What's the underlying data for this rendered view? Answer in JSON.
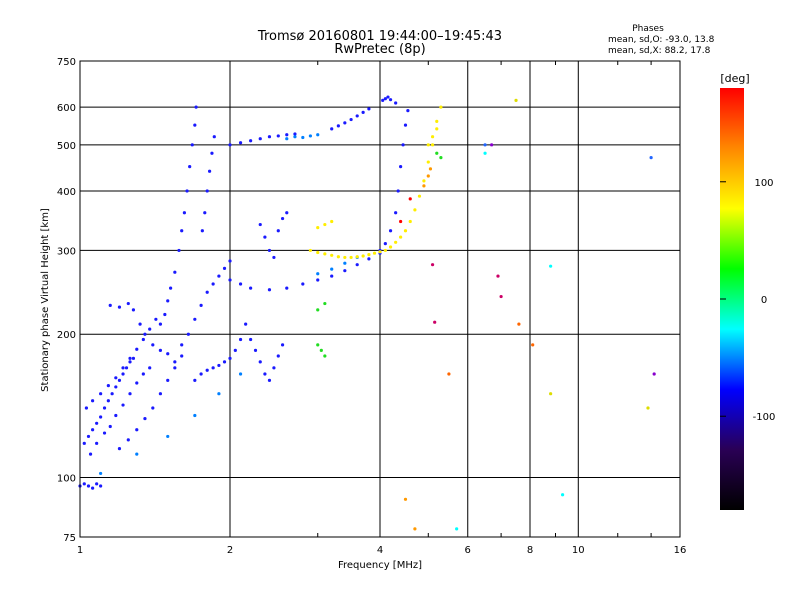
{
  "chart_data": {
    "type": "scatter",
    "title": "Tromsø 20160801 19:44:00–19:45:43",
    "subtitle": "RwPretec (8p)",
    "xlabel": "Frequency [MHz]",
    "ylabel": "Stationary phase Virtual Height [km]",
    "x_scale": "log",
    "y_scale": "log",
    "xlim": [
      1,
      16
    ],
    "ylim": [
      75,
      750
    ],
    "x_ticks": [
      1,
      2,
      4,
      6,
      8,
      10,
      16
    ],
    "y_ticks": [
      75,
      100,
      200,
      300,
      400,
      500,
      600,
      750
    ],
    "grid": true,
    "stats": {
      "heading": "Phases",
      "line_o": "mean, sd,O: -93.0, 13.8",
      "line_x": "mean, sd,X: 88.2, 17.8"
    },
    "colorbar": {
      "label": "[deg]",
      "range": [
        -180,
        180
      ],
      "ticks": [
        100,
        0,
        -100
      ],
      "colors": [
        "#000000",
        "#2a0055",
        "#0000ff",
        "#00ffff",
        "#00ff00",
        "#ffff00",
        "#ff8800",
        "#ff0000"
      ]
    },
    "point_size": 1.6,
    "series": [
      {
        "color": "#1a1aff",
        "points": [
          [
            1.0,
            96
          ],
          [
            1.02,
            97
          ],
          [
            1.04,
            96
          ],
          [
            1.06,
            95
          ],
          [
            1.08,
            97
          ],
          [
            1.1,
            96
          ],
          [
            1.02,
            118
          ],
          [
            1.04,
            122
          ],
          [
            1.06,
            126
          ],
          [
            1.08,
            130
          ],
          [
            1.1,
            134
          ],
          [
            1.12,
            140
          ],
          [
            1.14,
            145
          ],
          [
            1.16,
            150
          ],
          [
            1.18,
            155
          ],
          [
            1.2,
            160
          ],
          [
            1.22,
            165
          ],
          [
            1.24,
            170
          ],
          [
            1.26,
            175
          ],
          [
            1.28,
            178
          ],
          [
            1.05,
            112
          ],
          [
            1.08,
            118
          ],
          [
            1.12,
            124
          ],
          [
            1.15,
            128
          ],
          [
            1.18,
            135
          ],
          [
            1.22,
            142
          ],
          [
            1.26,
            150
          ],
          [
            1.3,
            158
          ],
          [
            1.34,
            165
          ],
          [
            1.38,
            170
          ],
          [
            1.03,
            140
          ],
          [
            1.06,
            145
          ],
          [
            1.1,
            150
          ],
          [
            1.14,
            156
          ],
          [
            1.18,
            162
          ],
          [
            1.22,
            170
          ],
          [
            1.26,
            178
          ],
          [
            1.3,
            186
          ],
          [
            1.34,
            195
          ],
          [
            1.38,
            205
          ],
          [
            1.42,
            215
          ],
          [
            1.2,
            115
          ],
          [
            1.25,
            120
          ],
          [
            1.3,
            126
          ],
          [
            1.35,
            133
          ],
          [
            1.4,
            140
          ],
          [
            1.45,
            150
          ],
          [
            1.5,
            160
          ],
          [
            1.55,
            170
          ],
          [
            1.6,
            180
          ],
          [
            1.15,
            230
          ],
          [
            1.2,
            228
          ],
          [
            1.25,
            232
          ],
          [
            1.28,
            225
          ],
          [
            1.32,
            210
          ],
          [
            1.35,
            200
          ],
          [
            1.4,
            190
          ],
          [
            1.45,
            185
          ],
          [
            1.5,
            182
          ],
          [
            1.55,
            175
          ],
          [
            1.45,
            210
          ],
          [
            1.48,
            220
          ],
          [
            1.5,
            235
          ],
          [
            1.52,
            250
          ],
          [
            1.55,
            270
          ],
          [
            1.58,
            300
          ],
          [
            1.6,
            330
          ],
          [
            1.62,
            360
          ],
          [
            1.64,
            400
          ],
          [
            1.66,
            450
          ],
          [
            1.68,
            500
          ],
          [
            1.7,
            550
          ],
          [
            1.71,
            600
          ],
          [
            1.6,
            190
          ],
          [
            1.65,
            200
          ],
          [
            1.7,
            215
          ],
          [
            1.75,
            230
          ],
          [
            1.8,
            245
          ],
          [
            1.85,
            255
          ],
          [
            1.9,
            265
          ],
          [
            1.95,
            275
          ],
          [
            2.0,
            285
          ],
          [
            1.7,
            160
          ],
          [
            1.75,
            165
          ],
          [
            1.8,
            168
          ],
          [
            1.85,
            170
          ],
          [
            1.9,
            172
          ],
          [
            1.95,
            175
          ],
          [
            2.0,
            178
          ],
          [
            2.05,
            185
          ],
          [
            2.1,
            195
          ],
          [
            2.15,
            210
          ],
          [
            1.76,
            330
          ],
          [
            1.78,
            360
          ],
          [
            1.8,
            400
          ],
          [
            1.82,
            440
          ],
          [
            1.84,
            480
          ],
          [
            1.86,
            520
          ],
          [
            2.0,
            500
          ],
          [
            2.1,
            505
          ],
          [
            2.2,
            510
          ],
          [
            2.3,
            515
          ],
          [
            2.4,
            520
          ],
          [
            2.5,
            522
          ],
          [
            2.6,
            525
          ],
          [
            2.7,
            527
          ],
          [
            2.0,
            260
          ],
          [
            2.1,
            255
          ],
          [
            2.2,
            250
          ],
          [
            2.4,
            248
          ],
          [
            2.6,
            250
          ],
          [
            2.8,
            255
          ],
          [
            3.0,
            260
          ],
          [
            3.2,
            265
          ],
          [
            3.4,
            272
          ],
          [
            3.6,
            280
          ],
          [
            3.8,
            288
          ],
          [
            4.0,
            296
          ],
          [
            2.3,
            340
          ],
          [
            2.35,
            320
          ],
          [
            2.4,
            300
          ],
          [
            2.45,
            290
          ],
          [
            2.5,
            330
          ],
          [
            2.55,
            350
          ],
          [
            2.6,
            360
          ],
          [
            2.2,
            195
          ],
          [
            2.25,
            185
          ],
          [
            2.3,
            175
          ],
          [
            2.35,
            165
          ],
          [
            2.4,
            160
          ],
          [
            2.45,
            170
          ],
          [
            2.5,
            180
          ],
          [
            2.55,
            190
          ],
          [
            4.0,
            300
          ],
          [
            4.1,
            310
          ],
          [
            4.2,
            330
          ],
          [
            4.3,
            360
          ],
          [
            4.35,
            400
          ],
          [
            4.4,
            450
          ],
          [
            4.45,
            500
          ],
          [
            4.5,
            550
          ],
          [
            4.55,
            590
          ],
          [
            3.2,
            540
          ],
          [
            3.3,
            548
          ],
          [
            3.4,
            556
          ],
          [
            3.5,
            565
          ],
          [
            3.6,
            575
          ],
          [
            3.7,
            585
          ],
          [
            3.8,
            595
          ],
          [
            4.05,
            620
          ],
          [
            4.1,
            625
          ],
          [
            4.15,
            630
          ],
          [
            4.2,
            622
          ],
          [
            4.3,
            612
          ]
        ]
      },
      {
        "color": "#0080ff",
        "points": [
          [
            1.1,
            102
          ],
          [
            1.3,
            112
          ],
          [
            1.5,
            122
          ],
          [
            1.7,
            135
          ],
          [
            1.9,
            150
          ],
          [
            2.1,
            165
          ],
          [
            2.6,
            515
          ],
          [
            2.7,
            520
          ],
          [
            2.8,
            518
          ],
          [
            2.9,
            522
          ],
          [
            3.0,
            525
          ],
          [
            3.0,
            268
          ],
          [
            3.2,
            274
          ],
          [
            3.4,
            282
          ],
          [
            3.6,
            290
          ]
        ]
      },
      {
        "color": "#ffee00",
        "points": [
          [
            2.9,
            300
          ],
          [
            3.0,
            297
          ],
          [
            3.1,
            295
          ],
          [
            3.2,
            293
          ],
          [
            3.3,
            291
          ],
          [
            3.4,
            290
          ],
          [
            3.5,
            290
          ],
          [
            3.6,
            291
          ],
          [
            3.7,
            292
          ],
          [
            3.8,
            294
          ],
          [
            3.9,
            296
          ],
          [
            4.0,
            298
          ],
          [
            4.1,
            300
          ],
          [
            4.2,
            305
          ],
          [
            4.3,
            312
          ],
          [
            4.4,
            320
          ],
          [
            4.5,
            330
          ],
          [
            4.6,
            345
          ],
          [
            4.7,
            365
          ],
          [
            4.8,
            390
          ],
          [
            4.9,
            420
          ],
          [
            5.0,
            460
          ],
          [
            5.1,
            500
          ],
          [
            5.2,
            540
          ],
          [
            3.0,
            335
          ],
          [
            3.1,
            340
          ],
          [
            3.2,
            345
          ],
          [
            5.0,
            500
          ],
          [
            5.1,
            520
          ],
          [
            5.2,
            560
          ],
          [
            5.3,
            600
          ]
        ]
      },
      {
        "color": "#ff9900",
        "points": [
          [
            4.9,
            410
          ],
          [
            5.0,
            430
          ],
          [
            5.05,
            445
          ],
          [
            4.5,
            90
          ],
          [
            4.7,
            78
          ]
        ]
      },
      {
        "color": "#22dd22",
        "points": [
          [
            3.0,
            190
          ],
          [
            3.05,
            185
          ],
          [
            3.1,
            180
          ],
          [
            3.0,
            225
          ],
          [
            3.1,
            232
          ],
          [
            5.2,
            480
          ],
          [
            5.3,
            470
          ]
        ]
      },
      {
        "color": "#ff0000",
        "points": [
          [
            4.4,
            345
          ],
          [
            4.6,
            385
          ]
        ]
      },
      {
        "color": "#cc0066",
        "points": [
          [
            5.1,
            280
          ],
          [
            5.15,
            212
          ],
          [
            6.9,
            265
          ],
          [
            7.0,
            240
          ]
        ]
      },
      {
        "color": "#00ffff",
        "points": [
          [
            5.7,
            78
          ],
          [
            8.8,
            278
          ],
          [
            9.3,
            92
          ],
          [
            6.5,
            480
          ]
        ]
      },
      {
        "color": "#ff6600",
        "points": [
          [
            7.6,
            210
          ],
          [
            8.1,
            190
          ],
          [
            5.5,
            165
          ]
        ]
      },
      {
        "color": "#8800cc",
        "points": [
          [
            6.7,
            500
          ],
          [
            14.2,
            165
          ]
        ]
      },
      {
        "color": "#2266ff",
        "points": [
          [
            14.0,
            470
          ],
          [
            6.5,
            500
          ]
        ]
      },
      {
        "color": "#dddd00",
        "points": [
          [
            8.8,
            150
          ],
          [
            13.8,
            140
          ],
          [
            7.5,
            620
          ]
        ]
      }
    ]
  }
}
